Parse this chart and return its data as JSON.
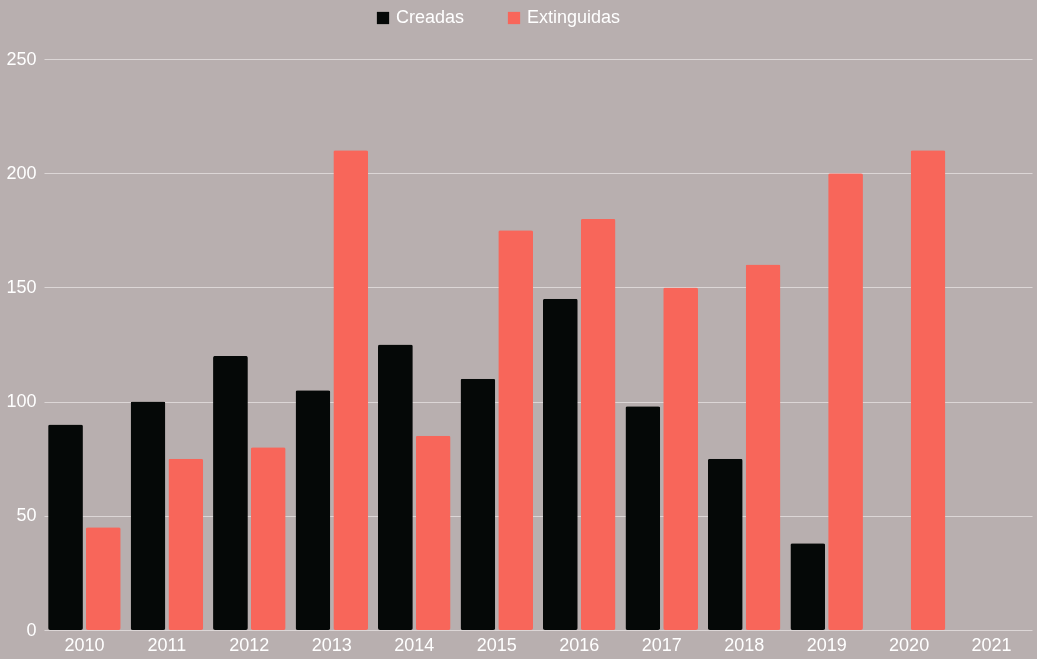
{
  "chart_data": {
    "type": "bar",
    "categories": [
      "2010",
      "2011",
      "2012",
      "2013",
      "2014",
      "2015",
      "2016",
      "2017",
      "2018",
      "2019",
      "2020",
      "2021"
    ],
    "series": [
      {
        "name": "Creadas",
        "color": "#050807",
        "values": [
          90,
          100,
          120,
          105,
          125,
          110,
          145,
          98,
          75,
          38,
          null,
          null
        ]
      },
      {
        "name": "Extinguidas",
        "color": "#f8665a",
        "values": [
          45,
          75,
          80,
          210,
          85,
          175,
          180,
          150,
          160,
          200,
          210,
          null
        ]
      }
    ],
    "ylim": [
      0,
      250
    ],
    "yticks": [
      0,
      50,
      100,
      150,
      200,
      250
    ],
    "grid": "y",
    "legend": "top"
  }
}
